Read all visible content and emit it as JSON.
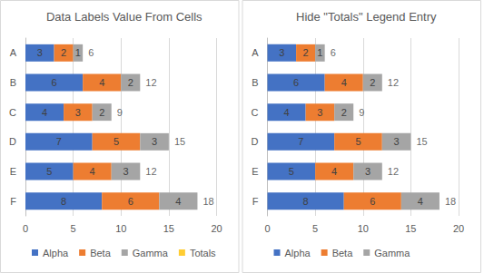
{
  "chart_data": [
    {
      "type": "bar",
      "title": "Data Labels Value From Cells",
      "orientation": "horizontal",
      "stacked": true,
      "data_labels": true,
      "grid": true,
      "legend": "bottom",
      "categories": [
        "A",
        "B",
        "C",
        "D",
        "E",
        "F"
      ],
      "xlim": [
        0,
        20
      ],
      "xticks": [
        0,
        5,
        10,
        15,
        20
      ],
      "series": [
        {
          "name": "Alpha",
          "color": "#4472c4",
          "values": [
            3,
            6,
            4,
            7,
            5,
            8
          ]
        },
        {
          "name": "Beta",
          "color": "#ed7d31",
          "values": [
            2,
            4,
            3,
            5,
            4,
            6
          ]
        },
        {
          "name": "Gamma",
          "color": "#a5a5a5",
          "values": [
            1,
            2,
            2,
            3,
            3,
            4
          ]
        },
        {
          "name": "Totals",
          "color": "#ffc000",
          "type": "scatter",
          "values": [
            6,
            12,
            9,
            15,
            12,
            18
          ]
        }
      ]
    },
    {
      "type": "bar",
      "title": "Hide \"Totals\" Legend Entry",
      "orientation": "horizontal",
      "stacked": true,
      "data_labels": true,
      "grid": true,
      "legend": "bottom",
      "categories": [
        "A",
        "B",
        "C",
        "D",
        "E",
        "F"
      ],
      "xlim": [
        0,
        20
      ],
      "xticks": [
        0,
        5,
        10,
        15,
        20
      ],
      "series": [
        {
          "name": "Alpha",
          "color": "#4472c4",
          "values": [
            3,
            6,
            4,
            7,
            5,
            8
          ]
        },
        {
          "name": "Beta",
          "color": "#ed7d31",
          "values": [
            2,
            4,
            3,
            5,
            4,
            6
          ]
        },
        {
          "name": "Gamma",
          "color": "#a5a5a5",
          "values": [
            1,
            2,
            2,
            3,
            3,
            4
          ]
        },
        {
          "type": "scatter",
          "values": [
            6,
            12,
            9,
            15,
            12,
            18
          ]
        }
      ]
    }
  ]
}
